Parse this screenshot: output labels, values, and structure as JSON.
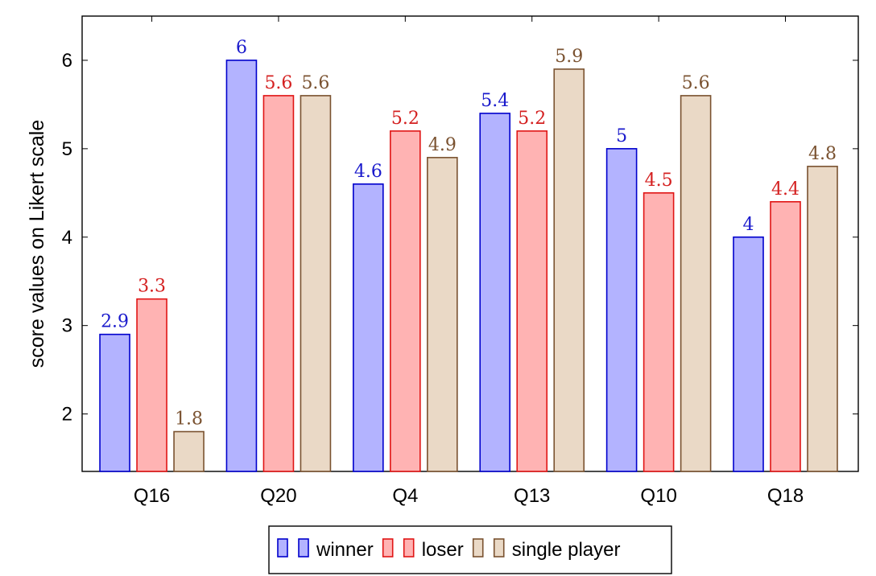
{
  "chart_data": {
    "type": "bar",
    "categories": [
      "Q16",
      "Q20",
      "Q4",
      "Q13",
      "Q10",
      "Q18"
    ],
    "series": [
      {
        "name": "winner",
        "values": [
          2.9,
          6,
          4.6,
          5.4,
          5,
          4
        ],
        "labels": [
          "2.9",
          "6",
          "4.6",
          "5.4",
          "5",
          "4"
        ],
        "fill": "#b3b3ff",
        "stroke": "#0000cc",
        "label_color": "#1a1acc"
      },
      {
        "name": "loser",
        "values": [
          3.3,
          5.6,
          5.2,
          5.2,
          4.5,
          4.4
        ],
        "labels": [
          "3.3",
          "5.6",
          "5.2",
          "5.2",
          "4.5",
          "4.4"
        ],
        "fill": "#ffb3b3",
        "stroke": "#e01515",
        "label_color": "#d42020"
      },
      {
        "name": "single player",
        "values": [
          1.8,
          5.6,
          4.9,
          5.9,
          5.6,
          4.8
        ],
        "labels": [
          "1.8",
          "5.6",
          "4.9",
          "5.9",
          "5.6",
          "4.8"
        ],
        "fill": "#ead9c6",
        "stroke": "#7a5230",
        "label_color": "#7a5230"
      }
    ],
    "title": "",
    "xlabel": "",
    "ylabel": "score values on Likert scale",
    "ylim": [
      1.35,
      6.5
    ],
    "yticks": [
      2,
      3,
      4,
      5,
      6
    ],
    "grid": false,
    "legend_position": "bottom-center"
  }
}
